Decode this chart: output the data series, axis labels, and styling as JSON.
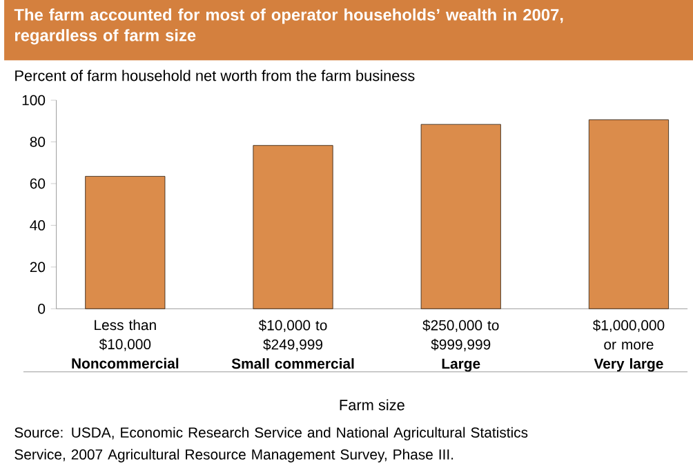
{
  "chart_data": {
    "type": "bar",
    "title": "The farm accounted for most of operator households’ wealth in 2007, regardless of farm size",
    "subtitle": "Percent of farm household net worth from the farm business",
    "xlabel": "Farm size",
    "categories": [
      "Less than\n$10,000\n**Noncommercial**",
      "$10,000 to\n$249,999\n**Small commercial**",
      "$250,000 to\n$999,999\n**Large**",
      "$1,000,000\nor more\n**Very large**"
    ],
    "values": [
      63.5,
      78.3,
      88.4,
      90.6
    ],
    "color": "#db8c4b",
    "ylim": [
      0,
      100
    ],
    "yticks": [
      0,
      20,
      40,
      60,
      80,
      100
    ],
    "grid": false,
    "annotations": [
      "Source: USDA, Economic Research Service and National Agricultural Statistics Service, 2007 Agricultural Resource Management Survey, Phase III."
    ]
  }
}
